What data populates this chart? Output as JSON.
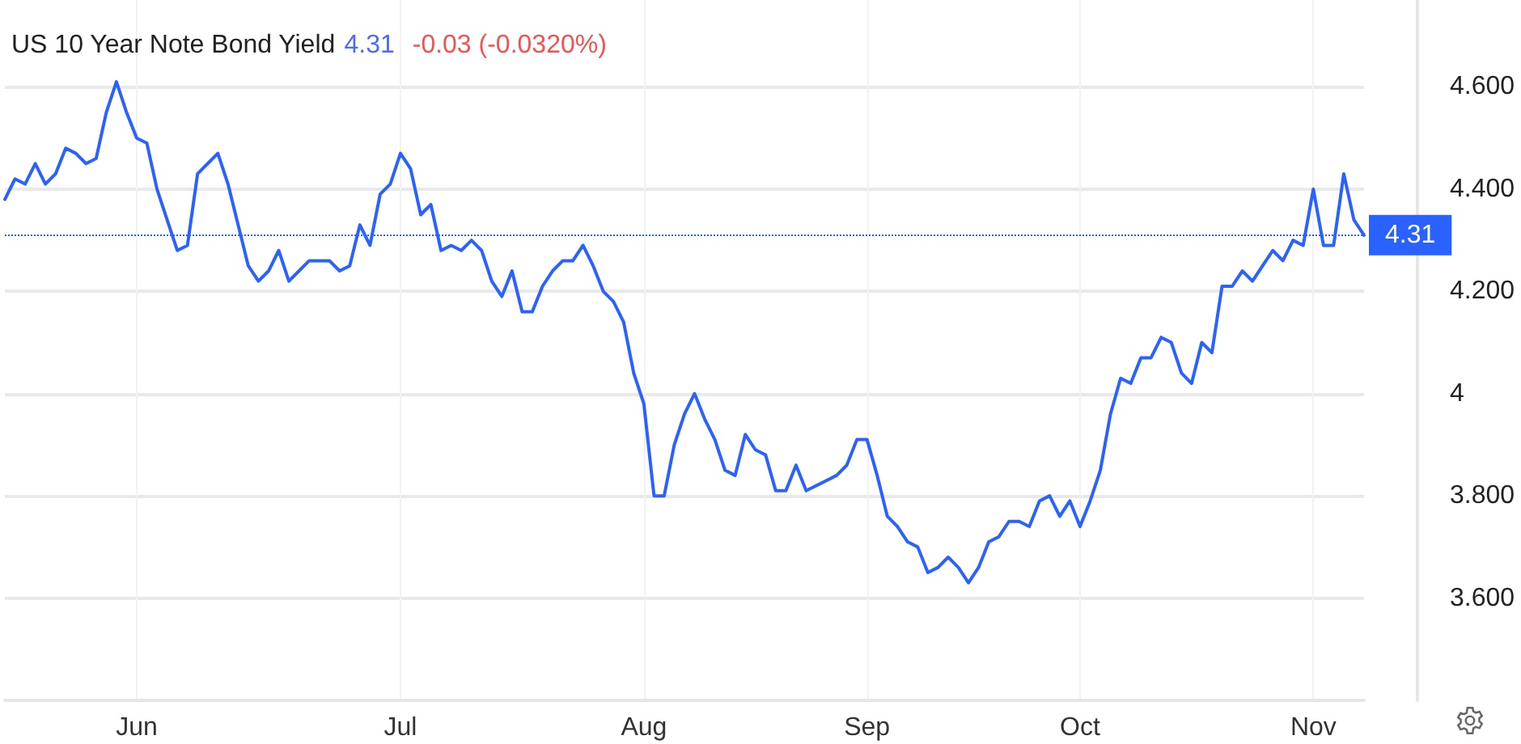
{
  "chart_data": {
    "type": "line",
    "title": "US 10 Year Note Bond Yield",
    "annotations": [
      "4.31",
      "-0.03 (-0.0320%)"
    ],
    "categories": [
      null,
      null,
      null,
      null,
      null,
      null,
      null,
      null,
      null,
      null,
      null,
      null,
      null,
      "Jun",
      null,
      null,
      null,
      null,
      null,
      null,
      null,
      null,
      null,
      null,
      null,
      null,
      null,
      null,
      null,
      null,
      null,
      null,
      null,
      null,
      null,
      null,
      null,
      null,
      null,
      "Jul",
      null,
      null,
      null,
      null,
      null,
      null,
      null,
      null,
      null,
      null,
      null,
      null,
      null,
      null,
      null,
      null,
      null,
      null,
      null,
      null,
      null,
      null,
      null,
      "Aug",
      null,
      null,
      null,
      null,
      null,
      null,
      null,
      null,
      null,
      null,
      null,
      null,
      null,
      null,
      null,
      null,
      null,
      null,
      null,
      null,
      null,
      "Sep",
      null,
      null,
      null,
      null,
      null,
      null,
      null,
      null,
      null,
      null,
      null,
      null,
      null,
      null,
      null,
      null,
      null,
      null,
      null,
      null,
      "Oct",
      null,
      null,
      null,
      null,
      null,
      null,
      null,
      null,
      null,
      null,
      null,
      null,
      null,
      null,
      null,
      null,
      null,
      null,
      null,
      null,
      null,
      null,
      "Nov",
      null,
      null,
      null,
      null,
      null
    ],
    "series": [
      {
        "color": "#2962ff",
        "values": [
          4.38,
          4.42,
          4.41,
          4.45,
          4.41,
          4.43,
          4.48,
          4.47,
          4.45,
          4.46,
          4.55,
          4.61,
          4.55,
          4.5,
          4.49,
          4.4,
          4.34,
          4.28,
          4.29,
          4.43,
          4.45,
          4.47,
          4.41,
          4.33,
          4.25,
          4.22,
          4.24,
          4.28,
          4.22,
          4.24,
          4.26,
          4.26,
          4.26,
          4.24,
          4.25,
          4.33,
          4.29,
          4.39,
          4.41,
          4.47,
          4.44,
          4.35,
          4.37,
          4.28,
          4.29,
          4.28,
          4.3,
          4.28,
          4.22,
          4.19,
          4.24,
          4.16,
          4.16,
          4.21,
          4.24,
          4.26,
          4.26,
          4.29,
          4.25,
          4.2,
          4.18,
          4.14,
          4.04,
          3.98,
          3.8,
          3.8,
          3.9,
          3.96,
          4.0,
          3.95,
          3.91,
          3.85,
          3.84,
          3.92,
          3.89,
          3.88,
          3.81,
          3.81,
          3.86,
          3.81,
          3.82,
          3.83,
          3.84,
          3.86,
          3.91,
          3.91,
          3.84,
          3.76,
          3.74,
          3.71,
          3.7,
          3.65,
          3.66,
          3.68,
          3.66,
          3.63,
          3.66,
          3.71,
          3.72,
          3.75,
          3.75,
          3.74,
          3.79,
          3.8,
          3.76,
          3.79,
          3.74,
          3.79,
          3.85,
          3.96,
          4.03,
          4.02,
          4.07,
          4.07,
          4.11,
          4.1,
          4.04,
          4.02,
          4.1,
          4.08,
          4.21,
          4.21,
          4.24,
          4.22,
          4.25,
          4.28,
          4.26,
          4.3,
          4.29,
          4.4,
          4.29,
          4.29,
          4.43,
          4.34,
          4.31
        ]
      }
    ],
    "ylim": [
      3.4,
      4.77
    ],
    "yticks": [
      {
        "value": 3.6,
        "label": "3.600"
      },
      {
        "value": 3.8,
        "label": "3.800"
      },
      4,
      {
        "value": 4.2,
        "label": "4.200"
      },
      {
        "value": 4.4,
        "label": "4.400"
      },
      {
        "value": 4.6,
        "label": "4.600"
      }
    ],
    "grid": true,
    "marker": "none",
    "ref_lines": [
      {
        "axis": "y",
        "value": 4.31,
        "label": "4.31",
        "color": "#2962ff",
        "line_style": "dotted"
      }
    ]
  }
}
